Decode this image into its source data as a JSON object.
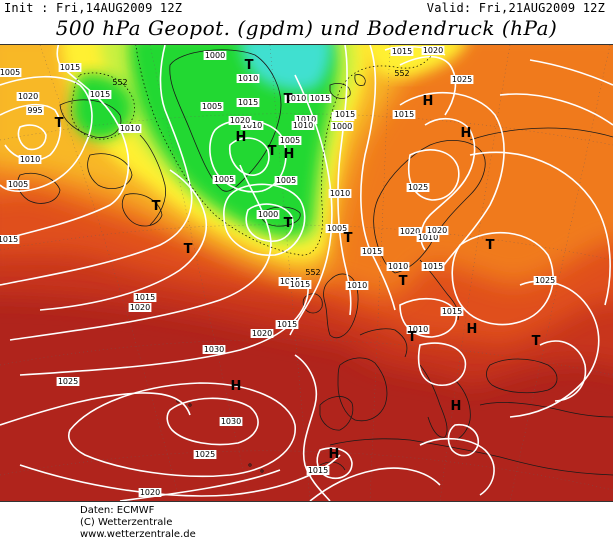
{
  "header": {
    "init": "Init : Fri,14AUG2009 12Z",
    "valid": "Valid: Fri,21AUG2009 12Z",
    "title": "500 hPa Geopot. (gpdm) und Bodendruck (hPa)"
  },
  "footer": {
    "line1": "Daten: ECMWF",
    "line2": "(C) Wetterzentrale",
    "line3": "www.wetterzentrale.de"
  },
  "colors": {
    "deep_red": "#a8201c",
    "red": "#c8341c",
    "orange_red": "#e0501c",
    "orange": "#f07a1e",
    "yellow_orange": "#f8b828",
    "yellow": "#fff030",
    "yellow_green": "#c8f040",
    "green": "#20d830",
    "cyan": "#40e0d0",
    "isobar": "#ffffff"
  },
  "pressure_centers": [
    {
      "type": "H",
      "label": "H"
    },
    {
      "type": "H",
      "label": "H"
    },
    {
      "type": "H",
      "label": "H"
    },
    {
      "type": "H",
      "label": "H"
    },
    {
      "type": "H",
      "label": "H"
    },
    {
      "type": "H",
      "label": "H"
    },
    {
      "type": "H",
      "label": "H"
    },
    {
      "type": "H",
      "label": "H"
    },
    {
      "type": "T",
      "label": "T"
    },
    {
      "type": "T",
      "label": "T"
    },
    {
      "type": "T",
      "label": "T"
    },
    {
      "type": "T",
      "label": "T"
    },
    {
      "type": "T",
      "label": "T"
    },
    {
      "type": "T",
      "label": "T"
    },
    {
      "type": "T",
      "label": "T"
    },
    {
      "type": "T",
      "label": "T"
    },
    {
      "type": "T",
      "label": "T"
    },
    {
      "type": "T",
      "label": "T"
    },
    {
      "type": "T",
      "label": "T"
    },
    {
      "type": "T",
      "label": "T"
    }
  ],
  "isobar_labels": [
    "1005",
    "1015",
    "1020",
    "1015",
    "1010",
    "995",
    "1000",
    "1005",
    "1010",
    "1015",
    "1010",
    "1020",
    "1010",
    "1015",
    "1010",
    "1000",
    "1005",
    "1010",
    "1005",
    "1005",
    "1010",
    "1000",
    "1005",
    "1005",
    "1010",
    "1015",
    "1020",
    "1025",
    "1015",
    "1015",
    "1020",
    "1005",
    "1015",
    "1010",
    "1015",
    "1015",
    "1020",
    "1010",
    "1025",
    "1030",
    "1025",
    "1030",
    "1025",
    "1020",
    "1015",
    "1015",
    "1020",
    "1015",
    "1010",
    "1015",
    "1015",
    "1010",
    "1025",
    "1020",
    "1015"
  ],
  "geopotential_labels": [
    "552",
    "552",
    "552"
  ]
}
